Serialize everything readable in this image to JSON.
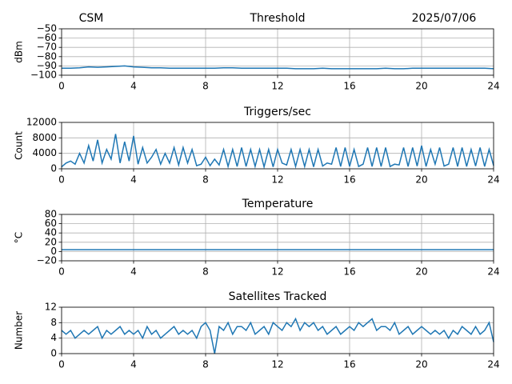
{
  "chart_data": [
    {
      "type": "line",
      "title": "Threshold",
      "annotations": [
        "CSM",
        "2025/07/06"
      ],
      "ylabel": "dBm",
      "color": "#1f77b4",
      "grid": true,
      "xlim": [
        0,
        24
      ],
      "xticks": [
        0,
        4,
        8,
        12,
        16,
        20,
        24
      ],
      "ylim": [
        -100,
        -50
      ],
      "yticks": [
        {
          "value": -100,
          "label": "−100"
        },
        {
          "value": -90,
          "label": "−90"
        },
        {
          "value": -80,
          "label": "−80"
        },
        {
          "value": -70,
          "label": "−70"
        },
        {
          "value": -60,
          "label": "−60"
        },
        {
          "value": -50,
          "label": "−50"
        }
      ],
      "x": [
        0,
        0.5,
        1,
        1.5,
        2,
        2.5,
        3,
        3.5,
        4,
        4.5,
        5,
        5.5,
        6,
        6.5,
        7,
        7.5,
        8,
        8.5,
        9,
        9.5,
        10,
        10.5,
        11,
        11.5,
        12,
        12.5,
        13,
        13.5,
        14,
        14.5,
        15,
        15.5,
        16,
        16.5,
        17,
        17.5,
        18,
        18.5,
        19,
        19.5,
        20,
        20.5,
        21,
        21.5,
        22,
        22.5,
        23,
        23.5,
        24
      ],
      "values": [
        -92.5,
        -92.5,
        -92,
        -91,
        -91.5,
        -91,
        -90.5,
        -90,
        -91,
        -91.5,
        -92,
        -92,
        -92.5,
        -92.5,
        -92.5,
        -92.5,
        -92.5,
        -92.5,
        -92,
        -92,
        -92.5,
        -92.5,
        -92.5,
        -92.5,
        -92.5,
        -92.5,
        -93,
        -93,
        -93,
        -92.5,
        -93,
        -93,
        -93,
        -93,
        -93,
        -93,
        -92.5,
        -93,
        -93,
        -92.5,
        -92.5,
        -92.5,
        -92.5,
        -92.5,
        -92.5,
        -92.5,
        -92.5,
        -92.5,
        -93
      ]
    },
    {
      "type": "line",
      "title": "Triggers/sec",
      "ylabel": "Count",
      "color": "#1f77b4",
      "grid": true,
      "xlim": [
        0,
        24
      ],
      "xticks": [
        0,
        4,
        8,
        12,
        16,
        20,
        24
      ],
      "ylim": [
        0,
        12000
      ],
      "yticks": [
        0,
        4000,
        8000,
        12000
      ],
      "x": [
        0,
        0.25,
        0.5,
        0.75,
        1,
        1.25,
        1.5,
        1.75,
        2,
        2.25,
        2.5,
        2.75,
        3,
        3.25,
        3.5,
        3.75,
        4,
        4.25,
        4.5,
        4.75,
        5,
        5.25,
        5.5,
        5.75,
        6,
        6.25,
        6.5,
        6.75,
        7,
        7.25,
        7.5,
        7.75,
        8,
        8.25,
        8.5,
        8.75,
        9,
        9.25,
        9.5,
        9.75,
        10,
        10.25,
        10.5,
        10.75,
        11,
        11.25,
        11.5,
        11.75,
        12,
        12.25,
        12.5,
        12.75,
        13,
        13.25,
        13.5,
        13.75,
        14,
        14.25,
        14.5,
        14.75,
        15,
        15.25,
        15.5,
        15.75,
        16,
        16.25,
        16.5,
        16.75,
        17,
        17.25,
        17.5,
        17.75,
        18,
        18.25,
        18.5,
        18.75,
        19,
        19.25,
        19.5,
        19.75,
        20,
        20.25,
        20.5,
        20.75,
        21,
        21.25,
        21.5,
        21.75,
        22,
        22.25,
        22.5,
        22.75,
        23,
        23.25,
        23.5,
        23.75,
        24
      ],
      "values": [
        500,
        1500,
        2000,
        1200,
        4000,
        1500,
        6000,
        2000,
        7500,
        1500,
        5000,
        2500,
        9000,
        1500,
        7000,
        2000,
        8500,
        1200,
        5500,
        1500,
        3000,
        5000,
        1200,
        4000,
        1500,
        5500,
        1000,
        5500,
        1500,
        5000,
        800,
        1200,
        3000,
        800,
        2500,
        1000,
        5000,
        600,
        5000,
        600,
        5500,
        600,
        5000,
        600,
        5000,
        500,
        5000,
        500,
        5000,
        1500,
        1000,
        5000,
        600,
        5000,
        600,
        5000,
        500,
        5000,
        700,
        1500,
        1200,
        5500,
        600,
        5500,
        600,
        5000,
        600,
        1200,
        5500,
        600,
        5500,
        600,
        5500,
        600,
        1200,
        1000,
        5500,
        600,
        5500,
        700,
        6000,
        600,
        5000,
        1200,
        5500,
        700,
        1200,
        5500,
        600,
        5500,
        600,
        5000,
        700,
        5500,
        600,
        5000,
        800
      ]
    },
    {
      "type": "line",
      "title": "Temperature",
      "ylabel": "°C",
      "color": "#1f77b4",
      "grid": true,
      "xlim": [
        0,
        24
      ],
      "xticks": [
        0,
        4,
        8,
        12,
        16,
        20,
        24
      ],
      "ylim": [
        -20,
        80
      ],
      "yticks": [
        {
          "value": -20,
          "label": "−20"
        },
        0,
        20,
        40,
        60,
        80
      ],
      "x": [
        0,
        0.5,
        1,
        1.5,
        2,
        2.5,
        3,
        3.5,
        4,
        4.5,
        5,
        5.5,
        6,
        6.5,
        7,
        7.5,
        8,
        8.5,
        9,
        9.5,
        10,
        10.5,
        11,
        11.5,
        12,
        12.5,
        13,
        13.5,
        14,
        14.5,
        15,
        15.5,
        16,
        16.5,
        17,
        17.5,
        18,
        18.5,
        19,
        19.5,
        20,
        20.5,
        21,
        21.5,
        22,
        22.5,
        23,
        23.5,
        24
      ],
      "values": [
        4,
        4,
        4,
        4,
        4,
        4,
        4,
        4,
        4,
        4,
        4,
        4,
        4,
        4,
        4,
        4,
        4,
        4,
        4,
        4,
        4,
        4,
        4,
        4,
        4,
        4,
        4,
        4,
        4,
        4,
        4,
        4,
        4,
        4,
        4,
        4,
        4,
        4,
        4,
        4,
        4,
        4,
        4,
        4,
        4,
        4,
        4,
        4,
        4
      ]
    },
    {
      "type": "line",
      "title": "Satellites Tracked",
      "ylabel": "Number",
      "color": "#1f77b4",
      "grid": true,
      "xlim": [
        0,
        24
      ],
      "xticks": [
        0,
        4,
        8,
        12,
        16,
        20,
        24
      ],
      "ylim": [
        0,
        12
      ],
      "yticks": [
        0,
        4,
        8,
        12
      ],
      "x": [
        0,
        0.25,
        0.5,
        0.75,
        1,
        1.25,
        1.5,
        1.75,
        2,
        2.25,
        2.5,
        2.75,
        3,
        3.25,
        3.5,
        3.75,
        4,
        4.25,
        4.5,
        4.75,
        5,
        5.25,
        5.5,
        5.75,
        6,
        6.25,
        6.5,
        6.75,
        7,
        7.25,
        7.5,
        7.75,
        8,
        8.25,
        8.5,
        8.75,
        9,
        9.25,
        9.5,
        9.75,
        10,
        10.25,
        10.5,
        10.75,
        11,
        11.25,
        11.5,
        11.75,
        12,
        12.25,
        12.5,
        12.75,
        13,
        13.25,
        13.5,
        13.75,
        14,
        14.25,
        14.5,
        14.75,
        15,
        15.25,
        15.5,
        15.75,
        16,
        16.25,
        16.5,
        16.75,
        17,
        17.25,
        17.5,
        17.75,
        18,
        18.25,
        18.5,
        18.75,
        19,
        19.25,
        19.5,
        19.75,
        20,
        20.25,
        20.5,
        20.75,
        21,
        21.25,
        21.5,
        21.75,
        22,
        22.25,
        22.5,
        22.75,
        23,
        23.25,
        23.5,
        23.75,
        24
      ],
      "values": [
        6,
        5,
        6,
        4,
        5,
        6,
        5,
        6,
        7,
        4,
        6,
        5,
        6,
        7,
        5,
        6,
        5,
        6,
        4,
        7,
        5,
        6,
        4,
        5,
        6,
        7,
        5,
        6,
        5,
        6,
        4,
        7,
        8,
        6,
        0,
        7,
        6,
        8,
        5,
        7,
        7,
        6,
        8,
        5,
        6,
        7,
        5,
        8,
        7,
        6,
        8,
        7,
        9,
        6,
        8,
        7,
        8,
        6,
        7,
        5,
        6,
        7,
        5,
        6,
        7,
        6,
        8,
        7,
        8,
        9,
        6,
        7,
        7,
        6,
        8,
        5,
        6,
        7,
        5,
        6,
        7,
        6,
        5,
        6,
        5,
        6,
        4,
        6,
        5,
        7,
        6,
        5,
        7,
        5,
        6,
        8,
        3
      ]
    }
  ]
}
